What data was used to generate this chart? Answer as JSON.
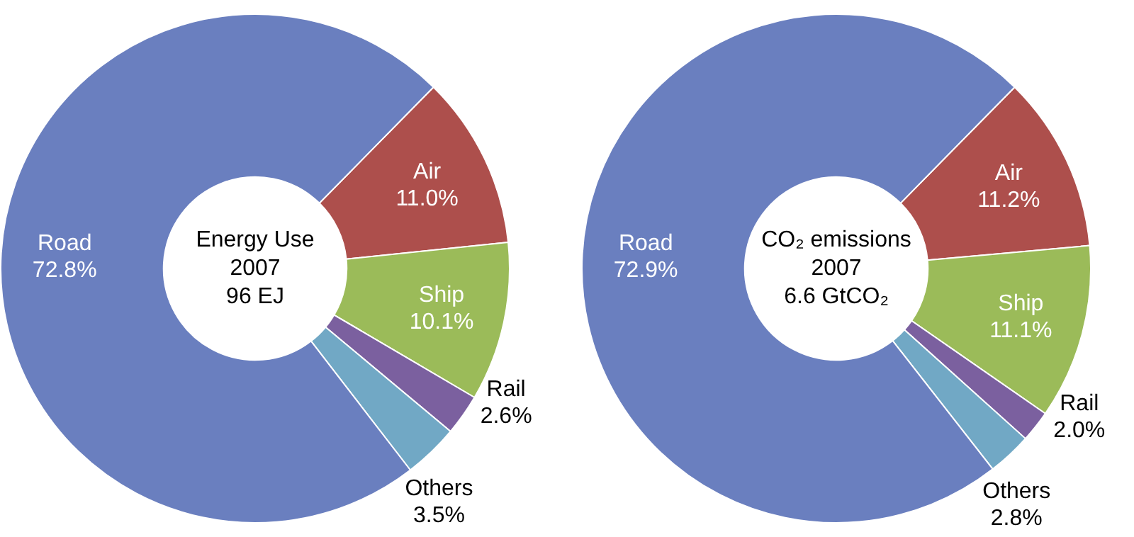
{
  "chart_data": [
    {
      "type": "donut",
      "categories": [
        "Air",
        "Ship",
        "Rail",
        "Others",
        "Road"
      ],
      "values": [
        11.0,
        10.1,
        2.6,
        3.5,
        72.8
      ],
      "value_labels": [
        "11.0%",
        "10.1%",
        "2.6%",
        "3.5%",
        "72.8%"
      ],
      "colors": [
        "#ad4f4c",
        "#9bbb59",
        "#7b609f",
        "#71a8c5",
        "#6a7fbf"
      ],
      "annotations": [
        "Energy Use",
        "2007",
        "96 EJ"
      ],
      "legend": false
    },
    {
      "type": "donut",
      "categories": [
        "Air",
        "Ship",
        "Rail",
        "Others",
        "Road"
      ],
      "values": [
        11.2,
        11.1,
        2.0,
        2.8,
        72.9
      ],
      "value_labels": [
        "11.2%",
        "11.1%",
        "2.0%",
        "2.8%",
        "72.9%"
      ],
      "colors": [
        "#ad4f4c",
        "#9bbb59",
        "#7b609f",
        "#71a8c5",
        "#6a7fbf"
      ],
      "annotations": [
        "CO₂ emissions",
        "2007",
        "6.6 GtCO₂"
      ],
      "legend": false
    }
  ]
}
